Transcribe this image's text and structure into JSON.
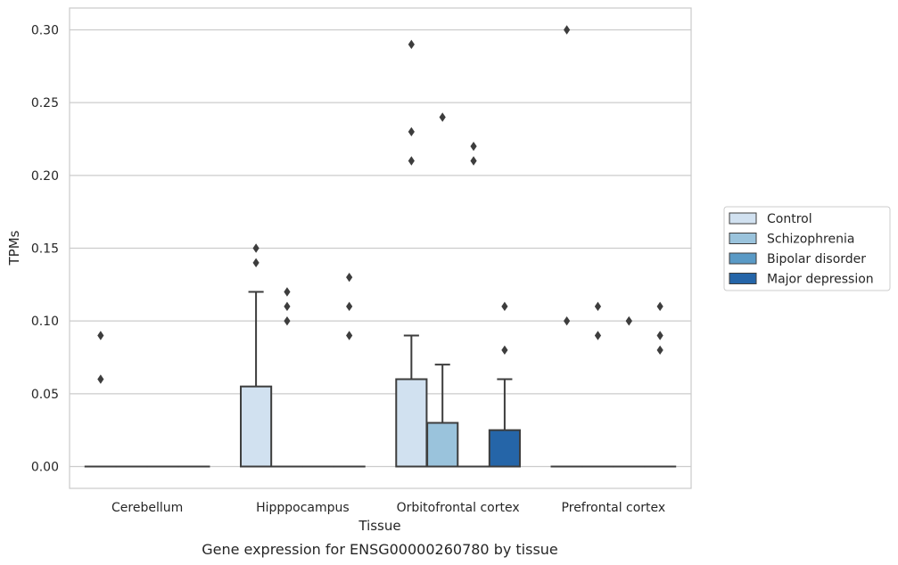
{
  "chart_data": {
    "type": "box",
    "caption": "Gene expression for ENSG00000260780 by tissue",
    "xlabel": "Tissue",
    "ylabel": "TPMs",
    "ylim": [
      -0.015,
      0.315
    ],
    "yticks": [
      0.0,
      0.05,
      0.1,
      0.15,
      0.2,
      0.25,
      0.3
    ],
    "ytick_labels": [
      "0.00",
      "0.05",
      "0.10",
      "0.15",
      "0.20",
      "0.25",
      "0.30"
    ],
    "grid": "horizontal",
    "legend_position": "outside-right",
    "categories": [
      "Cerebellum",
      "Hipppocampus",
      "Orbitofrontal cortex",
      "Prefrontal cortex"
    ],
    "series": [
      {
        "name": "Control",
        "color": "#d1e1f0",
        "boxes": [
          {
            "q1": 0,
            "median": 0,
            "q3": 0,
            "whisker_low": 0,
            "whisker_high": 0,
            "outliers": [
              0.09,
              0.06
            ]
          },
          {
            "q1": 0,
            "median": 0,
            "q3": 0.055,
            "whisker_low": 0,
            "whisker_high": 0.12,
            "outliers": [
              0.15,
              0.14
            ]
          },
          {
            "q1": 0,
            "median": 0,
            "q3": 0.06,
            "whisker_low": 0,
            "whisker_high": 0.09,
            "outliers": [
              0.29,
              0.23,
              0.21
            ]
          },
          {
            "q1": 0,
            "median": 0,
            "q3": 0,
            "whisker_low": 0,
            "whisker_high": 0,
            "outliers": [
              0.3,
              0.1
            ]
          }
        ]
      },
      {
        "name": "Schizophrenia",
        "color": "#9ac3dc",
        "boxes": [
          {
            "q1": 0,
            "median": 0,
            "q3": 0,
            "whisker_low": 0,
            "whisker_high": 0,
            "outliers": []
          },
          {
            "q1": 0,
            "median": 0,
            "q3": 0,
            "whisker_low": 0,
            "whisker_high": 0,
            "outliers": [
              0.12,
              0.11,
              0.1
            ]
          },
          {
            "q1": 0,
            "median": 0,
            "q3": 0.03,
            "whisker_low": 0,
            "whisker_high": 0.07,
            "outliers": [
              0.24
            ]
          },
          {
            "q1": 0,
            "median": 0,
            "q3": 0,
            "whisker_low": 0,
            "whisker_high": 0,
            "outliers": [
              0.11,
              0.09
            ]
          }
        ]
      },
      {
        "name": "Bipolar disorder",
        "color": "#5a9ac6",
        "boxes": [
          {
            "q1": 0,
            "median": 0,
            "q3": 0,
            "whisker_low": 0,
            "whisker_high": 0,
            "outliers": []
          },
          {
            "q1": 0,
            "median": 0,
            "q3": 0,
            "whisker_low": 0,
            "whisker_high": 0,
            "outliers": []
          },
          {
            "q1": 0,
            "median": 0,
            "q3": 0,
            "whisker_low": 0,
            "whisker_high": 0,
            "outliers": [
              0.22,
              0.21
            ]
          },
          {
            "q1": 0,
            "median": 0,
            "q3": 0,
            "whisker_low": 0,
            "whisker_high": 0,
            "outliers": [
              0.1,
              0.1
            ]
          }
        ]
      },
      {
        "name": "Major depression",
        "color": "#2565a8",
        "boxes": [
          {
            "q1": 0,
            "median": 0,
            "q3": 0,
            "whisker_low": 0,
            "whisker_high": 0,
            "outliers": []
          },
          {
            "q1": 0,
            "median": 0,
            "q3": 0,
            "whisker_low": 0,
            "whisker_high": 0,
            "outliers": [
              0.13,
              0.11,
              0.09
            ]
          },
          {
            "q1": 0,
            "median": 0,
            "q3": 0.025,
            "whisker_low": 0,
            "whisker_high": 0.06,
            "outliers": [
              0.11,
              0.08
            ]
          },
          {
            "q1": 0,
            "median": 0,
            "q3": 0,
            "whisker_low": 0,
            "whisker_high": 0,
            "outliers": [
              0.11,
              0.09,
              0.08
            ]
          }
        ]
      }
    ]
  }
}
